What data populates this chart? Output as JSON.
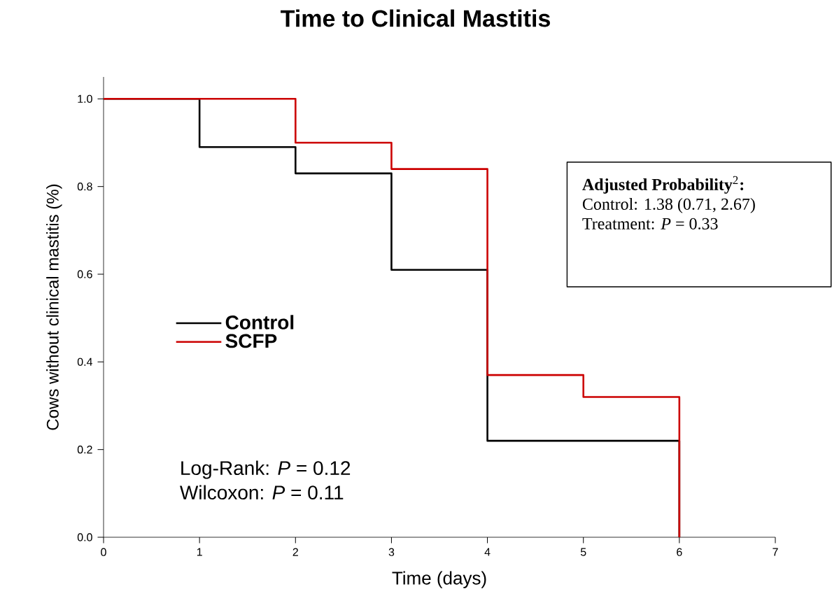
{
  "chart_data": {
    "type": "step",
    "title": "Time to Clinical Mastitis",
    "xlabel": "Time (days)",
    "ylabel": "Cows without clinical mastitis (%)",
    "xlim": [
      0,
      7
    ],
    "xticks": [
      0,
      1,
      2,
      3,
      4,
      5,
      6,
      7
    ],
    "ylim": [
      0,
      1.05
    ],
    "yticks": [
      {
        "value": 0,
        "label": "0.0"
      },
      {
        "value": 0.2,
        "label": "0.2"
      },
      {
        "value": 0.4,
        "label": "0.4"
      },
      {
        "value": 0.6,
        "label": "0.6"
      },
      {
        "value": 0.8,
        "label": "0.8"
      },
      {
        "value": 1,
        "label": "1.0"
      }
    ],
    "series": [
      {
        "name": "Control",
        "color": "#000000",
        "x": [
          0,
          1,
          2,
          3,
          4,
          6
        ],
        "values": [
          1,
          0.89,
          0.83,
          0.61,
          0.22,
          0
        ]
      },
      {
        "name": "SCFP",
        "color": "#cc0000",
        "x": [
          0,
          2,
          3,
          4,
          5,
          6
        ],
        "values": [
          1,
          0.9,
          0.84,
          0.37,
          0.32,
          0
        ]
      }
    ],
    "annotations": [
      "**Adjusted Probability**$^{2}$**:**",
      "Control: 1.38 (0.71, 2.67)",
      "Treatment: *P* = 0.33",
      "Log-Rank: *P* = 0.12",
      "Wilcoxon: *P* = 0.11"
    ],
    "legend": "left",
    "grid": false,
    "marker": "none",
    "line_style": "solid"
  }
}
